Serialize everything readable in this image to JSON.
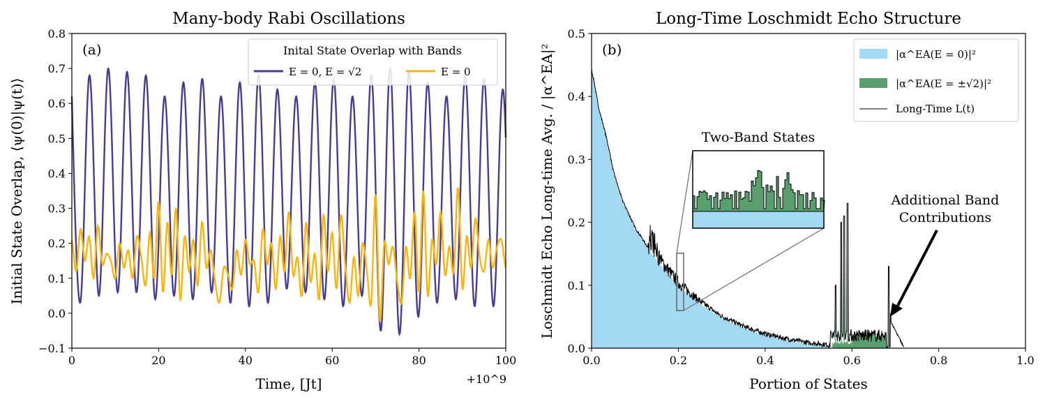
{
  "chart_data": [
    {
      "type": "line",
      "panel_label": "(a)",
      "title": "Many-body Rabi Oscillations",
      "xlabel": "Time, [Jt]",
      "ylabel": "Initial State Overlap, ⟨ψ(0)|ψ(t)⟩",
      "x_offset_label": "+10^9",
      "xlim": [
        0,
        100
      ],
      "ylim": [
        -0.1,
        0.8
      ],
      "xticks": [
        "0",
        "20",
        "40",
        "60",
        "80",
        "100"
      ],
      "yticks": [
        "−0.1",
        "0.0",
        "0.1",
        "0.2",
        "0.3",
        "0.4",
        "0.5",
        "0.6",
        "0.7",
        "0.8"
      ],
      "legend_title": "Inital State Overlap with Bands",
      "legend_placement": "top-right",
      "series": [
        {
          "name": "E = 0, E = √2",
          "color": "#463c96",
          "period": 4.33,
          "start_value": 0.62,
          "peaks": [
            0.68,
            0.7,
            0.69,
            0.68,
            0.62,
            0.66,
            0.67,
            0.62,
            0.66,
            0.68,
            0.64,
            0.62,
            0.66,
            0.67,
            0.62,
            0.68,
            0.7,
            0.69,
            0.66,
            0.62,
            0.68,
            0.67,
            0.64
          ],
          "troughs": [
            0.03,
            0.05,
            0.06,
            0.06,
            0.04,
            0.05,
            0.04,
            0.06,
            0.03,
            0.02,
            0.03,
            0.07,
            0.06,
            0.04,
            0.02,
            0.05,
            -0.05,
            -0.06,
            -0.01,
            0.03,
            0.04,
            0.02,
            0.02
          ]
        },
        {
          "name": "E = 0",
          "color": "#fbb40a",
          "x": [
            0,
            1,
            2,
            3,
            4,
            5,
            6,
            7,
            8,
            9,
            10,
            11,
            12,
            13,
            14,
            15,
            16,
            17,
            18,
            19,
            20,
            21,
            22,
            23,
            24,
            25,
            26,
            27,
            28,
            29,
            30,
            31,
            32,
            33,
            34,
            35,
            36,
            37,
            38,
            39,
            40,
            41,
            42,
            43,
            44,
            45,
            46,
            47,
            48,
            49,
            50,
            51,
            52,
            53,
            54,
            55,
            56,
            57,
            58,
            59,
            60,
            61,
            62,
            63,
            64,
            65,
            66,
            67,
            68,
            69,
            70,
            71,
            72,
            73,
            74,
            75,
            76,
            77,
            78,
            79,
            80,
            81,
            82,
            83,
            84,
            85,
            86,
            87,
            88,
            89,
            90,
            91,
            92,
            93,
            94,
            95,
            96,
            97,
            98,
            99,
            100
          ],
          "values": [
            0.21,
            0.12,
            0.24,
            0.15,
            0.22,
            0.1,
            0.25,
            0.14,
            0.17,
            0.15,
            0.1,
            0.2,
            0.13,
            0.18,
            0.1,
            0.22,
            0.16,
            0.08,
            0.23,
            0.1,
            0.32,
            0.06,
            0.26,
            0.11,
            0.3,
            0.04,
            0.22,
            0.12,
            0.21,
            0.08,
            0.26,
            0.13,
            0.18,
            0.09,
            0.03,
            0.13,
            0.11,
            0.07,
            0.18,
            0.11,
            0.21,
            0.14,
            0.15,
            0.06,
            0.24,
            0.14,
            0.2,
            0.07,
            0.22,
            0.12,
            0.29,
            0.11,
            0.16,
            0.05,
            0.26,
            0.09,
            0.17,
            0.04,
            0.28,
            0.12,
            0.23,
            0.07,
            0.28,
            0.14,
            0.03,
            0.16,
            0.05,
            0.2,
            0.12,
            0.03,
            0.34,
            -0.02,
            0.2,
            0.14,
            0.19,
            0.09,
            0.03,
            0.19,
            0.1,
            0.29,
            0.06,
            0.35,
            0.05,
            0.21,
            0.14,
            0.29,
            0.11,
            0.19,
            0.12,
            0.36,
            0.07,
            0.22,
            0.13,
            0.27,
            0.16,
            0.12,
            0.21,
            0.13,
            0.19,
            0.21,
            0.13
          ]
        }
      ]
    },
    {
      "type": "area",
      "panel_label": "(b)",
      "title": "Long-Time Loschmidt Echo Structure",
      "xlabel": "Portion of States",
      "ylabel": "Loschmidt Echo Long-time Avg. / |α^EA|²",
      "xlim": [
        0,
        1.0
      ],
      "ylim": [
        0,
        0.5
      ],
      "xticks": [
        "0.0",
        "0.2",
        "0.4",
        "0.6",
        "0.8",
        "1.0"
      ],
      "yticks": [
        "0.0",
        "0.1",
        "0.2",
        "0.3",
        "0.4",
        "0.5"
      ],
      "legend_placement": "top-right",
      "legend": [
        "|α^EA(E = 0)|²",
        "|α^EA(E = ±√2)|²",
        "Long-Time L(t)"
      ],
      "colors": {
        "blue_band": "#a2d8f1",
        "green_band": "#599e6e",
        "echo_line": "#000000"
      },
      "blue_curve": {
        "x": [
          0.0,
          0.005,
          0.01,
          0.015,
          0.02,
          0.03,
          0.04,
          0.05,
          0.07,
          0.1,
          0.13,
          0.15,
          0.2,
          0.25,
          0.3,
          0.35,
          0.4,
          0.45,
          0.5,
          0.54,
          0.56
        ],
        "values": [
          0.44,
          0.425,
          0.405,
          0.385,
          0.37,
          0.345,
          0.315,
          0.28,
          0.235,
          0.19,
          0.158,
          0.14,
          0.098,
          0.07,
          0.048,
          0.032,
          0.02,
          0.012,
          0.006,
          0.003,
          0.0
        ]
      },
      "green_regions": [
        {
          "x_range": [
            0.555,
            0.6
          ],
          "base": 0.008,
          "spikes": [
            {
              "x": 0.562,
              "value": 0.1
            },
            {
              "x": 0.575,
              "value": 0.2
            },
            {
              "x": 0.582,
              "value": 0.21
            },
            {
              "x": 0.59,
              "value": 0.23
            }
          ]
        },
        {
          "x_range": [
            0.6,
            0.68
          ],
          "base": 0.02,
          "spikes": [
            {
              "x": 0.605,
              "value": 0.03
            },
            {
              "x": 0.63,
              "value": 0.03
            },
            {
              "x": 0.655,
              "value": 0.025
            }
          ]
        }
      ],
      "echo_spikes": [
        {
          "x": 0.685,
          "value": 0.13
        },
        {
          "x": 0.69,
          "value": 0.055
        }
      ],
      "echo_tail_end_x": 0.72,
      "inset_label": "Two-Band States",
      "annotation": "Additional Band Contributions",
      "annotation_lines": [
        "Additional Band",
        "Contributions"
      ]
    }
  ]
}
